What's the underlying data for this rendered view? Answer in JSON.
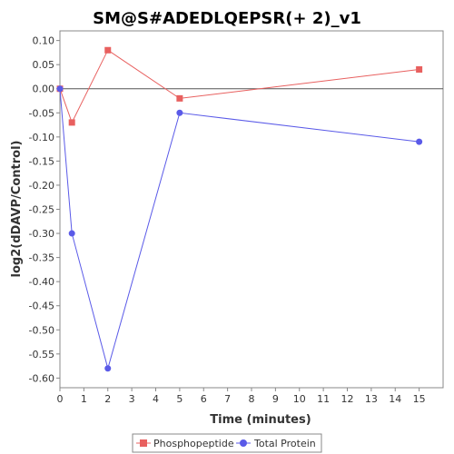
{
  "chart_data": {
    "type": "line",
    "title": "SM@S#ADEDLQEPSR(+ 2)_v1",
    "xlabel": "Time (minutes)",
    "ylabel": "log2(dDAVP/Control)",
    "xlim": [
      0,
      16
    ],
    "ylim": [
      -0.62,
      0.12
    ],
    "x_ticks": [
      0,
      1,
      2,
      3,
      4,
      5,
      6,
      7,
      8,
      9,
      10,
      11,
      12,
      13,
      14,
      15
    ],
    "y_ticks": [
      0.1,
      0.05,
      0.0,
      -0.05,
      -0.1,
      -0.15,
      -0.2,
      -0.25,
      -0.3,
      -0.35,
      -0.4,
      -0.45,
      -0.5,
      -0.55,
      -0.6
    ],
    "x_tick_labels": [
      "0",
      "1",
      "2",
      "3",
      "4",
      "5",
      "6",
      "7",
      "8",
      "9",
      "10",
      "11",
      "12",
      "13",
      "14",
      "15"
    ],
    "y_tick_labels": [
      "0.10",
      "0.05",
      "0.00",
      "-0.05",
      "-0.10",
      "-0.15",
      "-0.20",
      "-0.25",
      "-0.30",
      "-0.35",
      "-0.40",
      "-0.45",
      "-0.50",
      "-0.55",
      "-0.60"
    ],
    "zero_line": true,
    "grid": false,
    "legend_position": "bottom",
    "series": [
      {
        "name": "Phosphopeptide",
        "marker": "square",
        "color": "#e8605f",
        "x": [
          0,
          0.5,
          2,
          5,
          15
        ],
        "y": [
          0.0,
          -0.07,
          0.08,
          -0.02,
          0.04
        ]
      },
      {
        "name": "Total Protein",
        "marker": "circle",
        "color": "#5a5ae8",
        "x": [
          0,
          0.5,
          2,
          5,
          15
        ],
        "y": [
          0.0,
          -0.3,
          -0.58,
          -0.05,
          -0.11
        ]
      }
    ]
  }
}
